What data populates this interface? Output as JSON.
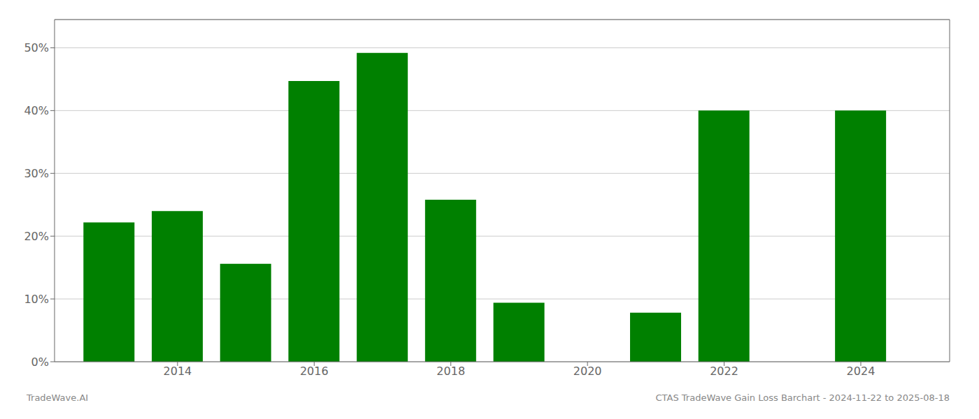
{
  "chart_data": {
    "type": "bar",
    "x": [
      2013,
      2014,
      2015,
      2016,
      2017,
      2018,
      2019,
      2020,
      2021,
      2022,
      2023,
      2024
    ],
    "values": [
      0.222,
      0.24,
      0.156,
      0.447,
      0.492,
      0.258,
      0.094,
      0.0,
      0.078,
      0.4,
      0.0,
      0.4
    ],
    "color": "#008000",
    "xlim": [
      2012.2,
      2025.3
    ],
    "xticks": [
      2014,
      2016,
      2018,
      2020,
      2022,
      2024
    ],
    "ylim": [
      0,
      0.545
    ],
    "yticks": [
      {
        "value": 0.0,
        "label": "0%"
      },
      {
        "value": 0.1,
        "label": "10%"
      },
      {
        "value": 0.2,
        "label": "20%"
      },
      {
        "value": 0.3,
        "label": "30%"
      },
      {
        "value": 0.4,
        "label": "40%"
      },
      {
        "value": 0.5,
        "label": "50%"
      }
    ],
    "grid": true,
    "annotations": [
      "TradeWave.AI",
      "CTAS TradeWave Gain Loss Barchart - 2024-11-22 to 2025-08-18"
    ]
  }
}
